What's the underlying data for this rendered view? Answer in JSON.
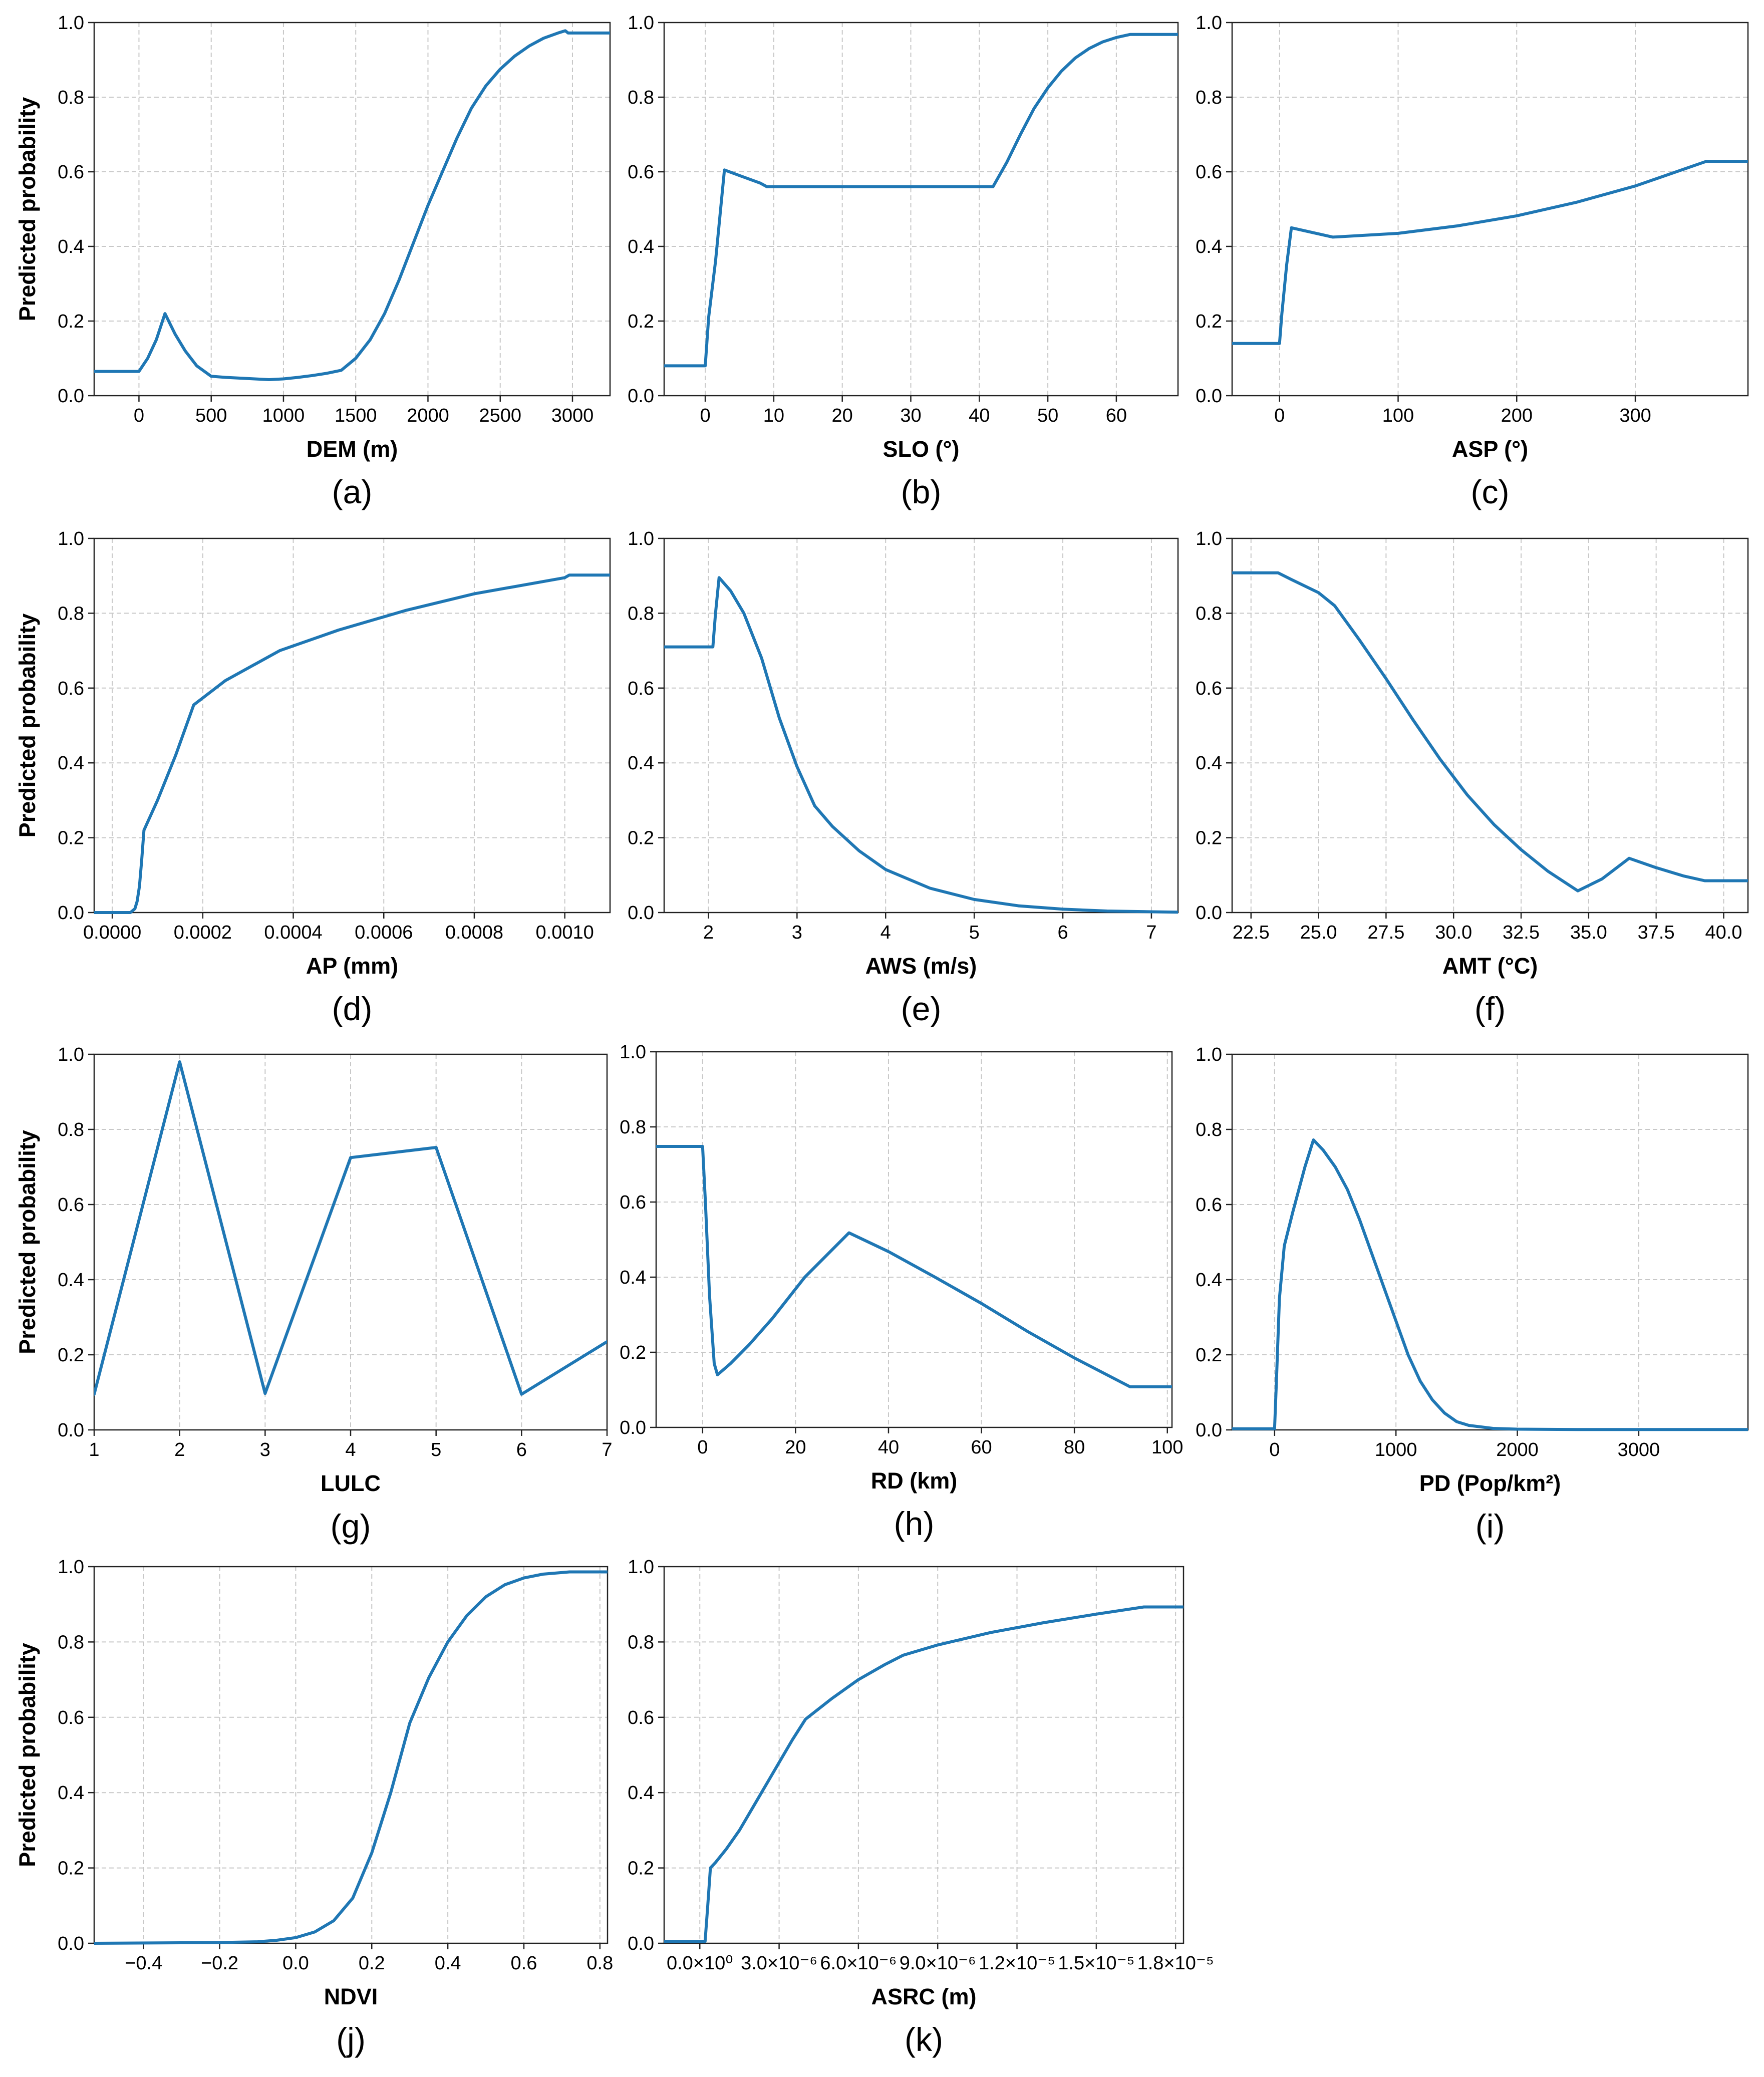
{
  "ylabel": "Predicted probability",
  "line_color": "#1f77b4",
  "chart_data": [
    {
      "type": "line",
      "tag": "(a)",
      "xlabel": "DEM (m)",
      "ylabel": "Predicted probability",
      "xlim": [
        -310,
        3260
      ],
      "ylim": [
        0,
        1
      ],
      "xticks": [
        0,
        500,
        1000,
        1500,
        2000,
        2500,
        3000
      ],
      "xtick_labels": [
        "0",
        "500",
        "1000",
        "1500",
        "2000",
        "2500",
        "3000"
      ],
      "yticks": [
        0,
        0.2,
        0.4,
        0.6,
        0.8,
        1.0
      ],
      "ytick_labels": [
        "0.0",
        "0.2",
        "0.4",
        "0.6",
        "0.8",
        "1.0"
      ],
      "x": [
        -310,
        0,
        60,
        120,
        180,
        250,
        320,
        400,
        500,
        600,
        700,
        800,
        900,
        1000,
        1100,
        1200,
        1300,
        1400,
        1500,
        1600,
        1700,
        1800,
        1900,
        2000,
        2100,
        2200,
        2300,
        2400,
        2500,
        2600,
        2700,
        2800,
        2900,
        2950,
        2970,
        3260
      ],
      "y": [
        0.065,
        0.065,
        0.1,
        0.15,
        0.22,
        0.165,
        0.12,
        0.08,
        0.052,
        0.049,
        0.047,
        0.045,
        0.043,
        0.045,
        0.049,
        0.054,
        0.06,
        0.068,
        0.1,
        0.15,
        0.22,
        0.31,
        0.41,
        0.51,
        0.6,
        0.69,
        0.77,
        0.83,
        0.875,
        0.91,
        0.937,
        0.958,
        0.972,
        0.978,
        0.972,
        0.972
      ]
    },
    {
      "type": "line",
      "tag": "(b)",
      "xlabel": "SLO (°)",
      "ylabel": "Predicted probability",
      "xlim": [
        -6,
        69
      ],
      "ylim": [
        0,
        1
      ],
      "xticks": [
        0,
        10,
        20,
        30,
        40,
        50,
        60
      ],
      "xtick_labels": [
        "0",
        "10",
        "20",
        "30",
        "40",
        "50",
        "60"
      ],
      "yticks": [
        0,
        0.2,
        0.4,
        0.6,
        0.8,
        1.0
      ],
      "ytick_labels": [
        "0.0",
        "0.2",
        "0.4",
        "0.6",
        "0.8",
        "1.0"
      ],
      "x": [
        -6,
        0,
        0.5,
        1.5,
        2.8,
        5,
        8,
        9,
        20,
        30,
        42,
        44,
        46,
        48,
        50,
        52,
        54,
        56,
        58,
        60,
        62,
        69
      ],
      "y": [
        0.08,
        0.08,
        0.21,
        0.36,
        0.605,
        0.59,
        0.57,
        0.56,
        0.56,
        0.56,
        0.56,
        0.625,
        0.7,
        0.77,
        0.825,
        0.87,
        0.905,
        0.93,
        0.948,
        0.96,
        0.968,
        0.968
      ]
    },
    {
      "type": "line",
      "tag": "(c)",
      "xlabel": "ASP (°)",
      "ylabel": "Predicted probability",
      "xlim": [
        -40,
        395
      ],
      "ylim": [
        0,
        1
      ],
      "xticks": [
        0,
        100,
        200,
        300
      ],
      "xtick_labels": [
        "0",
        "100",
        "200",
        "300"
      ],
      "yticks": [
        0,
        0.2,
        0.4,
        0.6,
        0.8,
        1.0
      ],
      "ytick_labels": [
        "0.0",
        "0.2",
        "0.4",
        "0.6",
        "0.8",
        "1.0"
      ],
      "x": [
        -40,
        0,
        2,
        6,
        10,
        45,
        100,
        150,
        200,
        250,
        300,
        360,
        395
      ],
      "y": [
        0.14,
        0.14,
        0.22,
        0.35,
        0.45,
        0.425,
        0.435,
        0.455,
        0.482,
        0.518,
        0.562,
        0.628,
        0.628
      ]
    },
    {
      "type": "line",
      "tag": "(d)",
      "xlabel": "AP (mm)",
      "ylabel": "Predicted probability",
      "xlim": [
        -4e-05,
        0.0011
      ],
      "ylim": [
        0,
        1
      ],
      "xticks": [
        0,
        0.0002,
        0.0004,
        0.0006,
        0.0008,
        0.001
      ],
      "xtick_labels": [
        "0.0000",
        "0.0002",
        "0.0004",
        "0.0006",
        "0.0008",
        "0.0010"
      ],
      "yticks": [
        0,
        0.2,
        0.4,
        0.6,
        0.8,
        1.0
      ],
      "ytick_labels": [
        "0.0",
        "0.2",
        "0.4",
        "0.6",
        "0.8",
        "1.0"
      ],
      "x": [
        -4e-05,
        4e-05,
        5e-05,
        5.5e-05,
        6e-05,
        6.5e-05,
        7e-05,
        0.0001,
        0.00014,
        0.00018,
        0.00025,
        0.00037,
        0.0005,
        0.00065,
        0.0008,
        0.001,
        0.00101,
        0.0011
      ],
      "y": [
        0,
        0,
        0.01,
        0.03,
        0.07,
        0.14,
        0.22,
        0.3,
        0.42,
        0.555,
        0.62,
        0.7,
        0.755,
        0.808,
        0.852,
        0.895,
        0.902,
        0.902
      ]
    },
    {
      "type": "line",
      "tag": "(e)",
      "xlabel": "AWS (m/s)",
      "ylabel": "Predicted probability",
      "xlim": [
        1.5,
        7.3
      ],
      "ylim": [
        0,
        1
      ],
      "xticks": [
        2,
        3,
        4,
        5,
        6,
        7
      ],
      "xtick_labels": [
        "2",
        "3",
        "4",
        "5",
        "6",
        "7"
      ],
      "yticks": [
        0,
        0.2,
        0.4,
        0.6,
        0.8,
        1.0
      ],
      "ytick_labels": [
        "0.0",
        "0.2",
        "0.4",
        "0.6",
        "0.8",
        "1.0"
      ],
      "x": [
        1.5,
        2.05,
        2.08,
        2.12,
        2.25,
        2.4,
        2.6,
        2.8,
        3.0,
        3.2,
        3.4,
        3.7,
        4.0,
        4.5,
        5.0,
        5.5,
        6.0,
        6.5,
        7.0,
        7.3
      ],
      "y": [
        0.71,
        0.71,
        0.8,
        0.895,
        0.86,
        0.8,
        0.68,
        0.52,
        0.39,
        0.285,
        0.23,
        0.165,
        0.115,
        0.065,
        0.035,
        0.018,
        0.009,
        0.004,
        0.002,
        0.001
      ]
    },
    {
      "type": "line",
      "tag": "(f)",
      "xlabel": "AMT (°C)",
      "ylabel": "Predicted probability",
      "xlim": [
        21.8,
        40.9
      ],
      "ylim": [
        0,
        1
      ],
      "xticks": [
        22.5,
        25.0,
        27.5,
        30.0,
        32.5,
        35.0,
        37.5,
        40.0
      ],
      "xtick_labels": [
        "22.5",
        "25.0",
        "27.5",
        "30.0",
        "32.5",
        "35.0",
        "37.5",
        "40.0"
      ],
      "yticks": [
        0,
        0.2,
        0.4,
        0.6,
        0.8,
        1.0
      ],
      "ytick_labels": [
        "0.0",
        "0.2",
        "0.4",
        "0.6",
        "0.8",
        "1.0"
      ],
      "x": [
        21.8,
        23.5,
        24,
        25,
        25.6,
        26.5,
        27.5,
        28.5,
        29.5,
        30.5,
        31.5,
        32.5,
        33.5,
        34.6,
        35.5,
        36.5,
        37.5,
        38.5,
        39.3,
        40.9
      ],
      "y": [
        0.908,
        0.908,
        0.89,
        0.855,
        0.82,
        0.73,
        0.625,
        0.515,
        0.41,
        0.315,
        0.235,
        0.168,
        0.11,
        0.058,
        0.09,
        0.145,
        0.12,
        0.098,
        0.085,
        0.085
      ]
    },
    {
      "type": "line",
      "tag": "(g)",
      "xlabel": "LULC",
      "ylabel": "Predicted probability",
      "xlim": [
        1,
        7
      ],
      "ylim": [
        0,
        1
      ],
      "xticks": [
        1,
        2,
        3,
        4,
        5,
        6,
        7
      ],
      "xtick_labels": [
        "1",
        "2",
        "3",
        "4",
        "5",
        "6",
        "7"
      ],
      "yticks": [
        0,
        0.2,
        0.4,
        0.6,
        0.8,
        1.0
      ],
      "ytick_labels": [
        "0.0",
        "0.2",
        "0.4",
        "0.6",
        "0.8",
        "1.0"
      ],
      "x": [
        1,
        2,
        3,
        4,
        5,
        6,
        7
      ],
      "y": [
        0.095,
        0.98,
        0.097,
        0.725,
        0.752,
        0.095,
        0.235
      ]
    },
    {
      "type": "line",
      "tag": "(h)",
      "xlabel": "RD (km)",
      "ylabel": "Predicted probability",
      "xlim": [
        -10,
        101
      ],
      "ylim": [
        0,
        1
      ],
      "xticks": [
        0,
        20,
        40,
        60,
        80,
        100
      ],
      "xtick_labels": [
        "0",
        "20",
        "40",
        "60",
        "80",
        "100"
      ],
      "yticks": [
        0,
        0.2,
        0.4,
        0.6,
        0.8,
        1.0
      ],
      "ytick_labels": [
        "0.0",
        "0.2",
        "0.4",
        "0.6",
        "0.8",
        "1.0"
      ],
      "x": [
        -10,
        0,
        0.6,
        1.5,
        2.5,
        3.2,
        6,
        10,
        15,
        22,
        31.5,
        40,
        50,
        60,
        70,
        80,
        92,
        101
      ],
      "y": [
        0.748,
        0.748,
        0.6,
        0.35,
        0.17,
        0.14,
        0.17,
        0.22,
        0.29,
        0.4,
        0.518,
        0.468,
        0.4,
        0.33,
        0.255,
        0.185,
        0.108,
        0.108
      ]
    },
    {
      "type": "line",
      "tag": "(i)",
      "xlabel": "PD (Pop/km²)",
      "ylabel": "Predicted probability",
      "xlim": [
        -350,
        3900
      ],
      "ylim": [
        0,
        1
      ],
      "xticks": [
        0,
        1000,
        2000,
        3000
      ],
      "xtick_labels": [
        "0",
        "1000",
        "2000",
        "3000"
      ],
      "yticks": [
        0,
        0.2,
        0.4,
        0.6,
        0.8,
        1.0
      ],
      "ytick_labels": [
        "0.0",
        "0.2",
        "0.4",
        "0.6",
        "0.8",
        "1.0"
      ],
      "x": [
        -350,
        0,
        15,
        40,
        80,
        150,
        250,
        320,
        400,
        500,
        600,
        700,
        800,
        900,
        1000,
        1100,
        1200,
        1300,
        1400,
        1500,
        1600,
        1800,
        2000,
        2500,
        3000,
        3900
      ],
      "y": [
        0.003,
        0.003,
        0.13,
        0.35,
        0.49,
        0.58,
        0.7,
        0.772,
        0.745,
        0.7,
        0.64,
        0.56,
        0.47,
        0.38,
        0.29,
        0.2,
        0.13,
        0.08,
        0.045,
        0.022,
        0.012,
        0.004,
        0.002,
        0.001,
        0.001,
        0.001
      ]
    },
    {
      "type": "line",
      "tag": "(j)",
      "xlabel": "NDVI",
      "ylabel": "Predicted probability",
      "xlim": [
        -0.53,
        0.82
      ],
      "ylim": [
        0,
        1
      ],
      "xticks": [
        -0.4,
        -0.2,
        0.0,
        0.2,
        0.4,
        0.6,
        0.8
      ],
      "xtick_labels": [
        "−0.4",
        "−0.2",
        "0.0",
        "0.2",
        "0.4",
        "0.6",
        "0.8"
      ],
      "yticks": [
        0,
        0.2,
        0.4,
        0.6,
        0.8,
        1.0
      ],
      "ytick_labels": [
        "0.0",
        "0.2",
        "0.4",
        "0.6",
        "0.8",
        "1.0"
      ],
      "x": [
        -0.53,
        -0.2,
        -0.1,
        -0.05,
        0.0,
        0.05,
        0.1,
        0.15,
        0.2,
        0.25,
        0.3,
        0.35,
        0.4,
        0.45,
        0.5,
        0.55,
        0.6,
        0.65,
        0.72,
        0.82
      ],
      "y": [
        0.0,
        0.002,
        0.004,
        0.008,
        0.015,
        0.03,
        0.06,
        0.12,
        0.24,
        0.4,
        0.585,
        0.705,
        0.8,
        0.87,
        0.92,
        0.952,
        0.97,
        0.98,
        0.986,
        0.986
      ]
    },
    {
      "type": "line",
      "tag": "(k)",
      "xlabel": "ASRC (m)",
      "ylabel": "Predicted probability",
      "xlim": [
        -1.35e-06,
        1.83e-05
      ],
      "ylim": [
        0,
        1
      ],
      "xticks": [
        0,
        3e-06,
        6e-06,
        9e-06,
        1.2e-05,
        1.5e-05,
        1.8e-05
      ],
      "xtick_labels": [
        "0.0×10⁰",
        "3.0×10⁻⁶",
        "6.0×10⁻⁶",
        "9.0×10⁻⁶",
        "1.2×10⁻⁵",
        "1.5×10⁻⁵",
        "1.8×10⁻⁵"
      ],
      "yticks": [
        0,
        0.2,
        0.4,
        0.6,
        0.8,
        1.0
      ],
      "ytick_labels": [
        "0.0",
        "0.2",
        "0.4",
        "0.6",
        "0.8",
        "1.0"
      ],
      "x": [
        -1.35e-06,
        2e-07,
        3e-07,
        4e-07,
        6e-07,
        1e-06,
        1.5e-06,
        2e-06,
        2.5e-06,
        3e-06,
        3.5e-06,
        4e-06,
        5e-06,
        6e-06,
        7e-06,
        7.7e-06,
        9e-06,
        1.1e-05,
        1.3e-05,
        1.5e-05,
        1.68e-05,
        1.83e-05
      ],
      "y": [
        0.005,
        0.005,
        0.1,
        0.2,
        0.215,
        0.25,
        0.3,
        0.36,
        0.42,
        0.48,
        0.54,
        0.595,
        0.65,
        0.7,
        0.74,
        0.765,
        0.792,
        0.825,
        0.851,
        0.874,
        0.893,
        0.893
      ]
    }
  ]
}
